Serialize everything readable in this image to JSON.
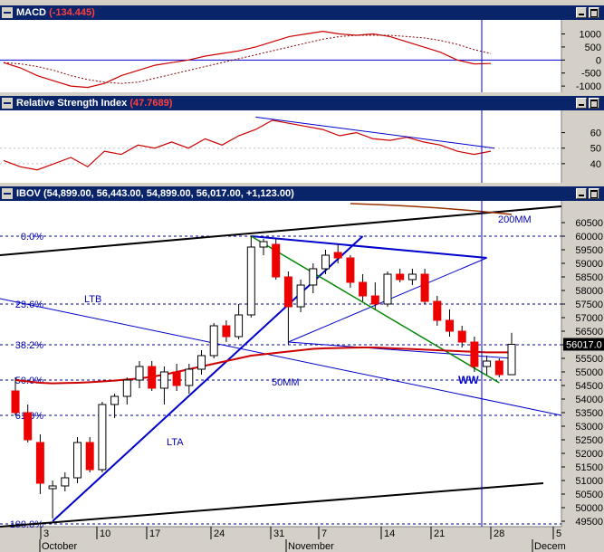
{
  "panels": {
    "macd": {
      "title": "MACD",
      "value": "(-134.445)"
    },
    "rsi": {
      "title": "Relative Strength Index",
      "value": "(47.7689)"
    },
    "price": {
      "title": "IBOV",
      "values": "(54,899.00, 56,443.00, 54,899.00, 56,017.00, +1,123.00)"
    }
  },
  "chart_data": [
    {
      "type": "line",
      "panel": "MACD",
      "ylim": [
        -1100,
        1400
      ],
      "yticks": [
        1000,
        500,
        0,
        -500,
        -1000
      ],
      "series": [
        {
          "values": [
            -100,
            -300,
            -600,
            -800,
            -1000,
            -1050,
            -900,
            -600,
            -400,
            -200,
            -100,
            0,
            150,
            250,
            350,
            500,
            700,
            900,
            1000,
            1100,
            1000,
            950,
            1000,
            900,
            700,
            500,
            300,
            0,
            -150,
            -134
          ]
        },
        {
          "values": [
            -100,
            -150,
            -250,
            -400,
            -600,
            -750,
            -850,
            -900,
            -850,
            -700,
            -550,
            -400,
            -250,
            -100,
            50,
            200,
            350,
            500,
            650,
            800,
            900,
            950,
            950,
            950,
            900,
            850,
            750,
            600,
            400,
            250
          ]
        }
      ]
    },
    {
      "type": "line",
      "panel": "RSI",
      "ylim": [
        30,
        72
      ],
      "yticks": [
        60,
        50,
        40
      ],
      "series": [
        {
          "values": [
            42,
            38,
            36,
            40,
            44,
            38,
            48,
            46,
            52,
            50,
            54,
            50,
            56,
            52,
            58,
            62,
            68,
            66,
            64,
            62,
            58,
            60,
            56,
            55,
            57,
            54,
            52,
            48,
            46,
            48
          ]
        }
      ]
    },
    {
      "type": "candlestick",
      "panel": "IBOV",
      "ylim": [
        49300,
        61300
      ],
      "yticks": [
        60500,
        60000,
        59500,
        59000,
        58500,
        58000,
        57500,
        57000,
        56500,
        56000,
        55500,
        55000,
        54500,
        54000,
        53500,
        53000,
        52500,
        52000,
        51500,
        51000,
        50500,
        50000,
        49500
      ],
      "last_label": "56017.0",
      "xticks": [
        "3",
        "10",
        "17",
        "24",
        "31",
        "7",
        "14",
        "21",
        "28",
        "5"
      ],
      "months": [
        "October",
        "November",
        "Decem"
      ],
      "candles": [
        {
          "o": 54300,
          "h": 54800,
          "l": 53400,
          "c": 53500
        },
        {
          "o": 53500,
          "h": 53800,
          "l": 52400,
          "c": 52500
        },
        {
          "o": 52400,
          "h": 52700,
          "l": 50500,
          "c": 50900
        },
        {
          "o": 50700,
          "h": 51000,
          "l": 49600,
          "c": 50800
        },
        {
          "o": 50800,
          "h": 51300,
          "l": 50600,
          "c": 51100
        },
        {
          "o": 51100,
          "h": 52600,
          "l": 50900,
          "c": 52400
        },
        {
          "o": 52400,
          "h": 52600,
          "l": 51300,
          "c": 51400
        },
        {
          "o": 51400,
          "h": 53900,
          "l": 51300,
          "c": 53800
        },
        {
          "o": 53800,
          "h": 54200,
          "l": 53300,
          "c": 54100
        },
        {
          "o": 54100,
          "h": 54800,
          "l": 53800,
          "c": 54700
        },
        {
          "o": 54700,
          "h": 55400,
          "l": 54400,
          "c": 55200
        },
        {
          "o": 55200,
          "h": 55400,
          "l": 54300,
          "c": 54400
        },
        {
          "o": 54400,
          "h": 55200,
          "l": 53800,
          "c": 55000
        },
        {
          "o": 55000,
          "h": 55300,
          "l": 54300,
          "c": 54500
        },
        {
          "o": 54500,
          "h": 55300,
          "l": 54200,
          "c": 55100
        },
        {
          "o": 55100,
          "h": 55800,
          "l": 54900,
          "c": 55600
        },
        {
          "o": 55600,
          "h": 56800,
          "l": 55500,
          "c": 56700
        },
        {
          "o": 56700,
          "h": 56900,
          "l": 56100,
          "c": 56300
        },
        {
          "o": 56300,
          "h": 57500,
          "l": 56200,
          "c": 57100
        },
        {
          "o": 57100,
          "h": 60000,
          "l": 57000,
          "c": 59600
        },
        {
          "o": 59600,
          "h": 59900,
          "l": 59300,
          "c": 59800
        },
        {
          "o": 59700,
          "h": 59900,
          "l": 58400,
          "c": 58500
        },
        {
          "o": 58500,
          "h": 58700,
          "l": 56000,
          "c": 57400
        },
        {
          "o": 57400,
          "h": 58400,
          "l": 57200,
          "c": 58200
        },
        {
          "o": 58200,
          "h": 59000,
          "l": 57900,
          "c": 58800
        },
        {
          "o": 58800,
          "h": 59500,
          "l": 58600,
          "c": 59300
        },
        {
          "o": 59400,
          "h": 59700,
          "l": 59000,
          "c": 59200
        },
        {
          "o": 59200,
          "h": 59300,
          "l": 58100,
          "c": 58300
        },
        {
          "o": 58300,
          "h": 58600,
          "l": 57600,
          "c": 57800
        },
        {
          "o": 57800,
          "h": 58300,
          "l": 57300,
          "c": 57500
        },
        {
          "o": 57500,
          "h": 58700,
          "l": 57400,
          "c": 58600
        },
        {
          "o": 58600,
          "h": 58800,
          "l": 58300,
          "c": 58400
        },
        {
          "o": 58400,
          "h": 58800,
          "l": 58200,
          "c": 58600
        },
        {
          "o": 58600,
          "h": 58800,
          "l": 57500,
          "c": 57600
        },
        {
          "o": 57600,
          "h": 57800,
          "l": 56700,
          "c": 56900
        },
        {
          "o": 56900,
          "h": 57300,
          "l": 56300,
          "c": 56500
        },
        {
          "o": 56500,
          "h": 56700,
          "l": 55900,
          "c": 56100
        },
        {
          "o": 56100,
          "h": 56300,
          "l": 55000,
          "c": 55200
        },
        {
          "o": 55200,
          "h": 55600,
          "l": 54900,
          "c": 55400
        },
        {
          "o": 55400,
          "h": 55500,
          "l": 54800,
          "c": 54900
        },
        {
          "o": 54899,
          "h": 56443,
          "l": 54899,
          "c": 56017
        }
      ],
      "moving_averages": {
        "50MM": [
          54700,
          54650,
          54600,
          54580,
          54590,
          54600,
          54620,
          54650,
          54680,
          54720,
          54760,
          54820,
          54900,
          55000,
          55100,
          55200,
          55300,
          55400,
          55500,
          55600,
          55650,
          55700,
          55750,
          55800,
          55850,
          55870,
          55880,
          55890,
          55900,
          55900,
          55880,
          55860,
          55840,
          55820,
          55800,
          55780,
          55760,
          55740,
          55720,
          55720,
          55720
        ],
        "200MM": {
          "x0": 27,
          "x1": 40,
          "y0": 61200,
          "y1": 60800
        }
      },
      "fibonacci": [
        {
          "label": "0.0%",
          "value": 60000
        },
        {
          "label": "23.6%",
          "value": 57500
        },
        {
          "label": "38.2%",
          "value": 56000
        },
        {
          "label": "50.0%",
          "value": 54700
        },
        {
          "label": "61.8%",
          "value": 53400
        },
        {
          "label": "100.0%",
          "value": 49400
        }
      ],
      "annotations": [
        "LTB",
        "LTA",
        "50MM",
        "200MM",
        "WW"
      ]
    }
  ]
}
